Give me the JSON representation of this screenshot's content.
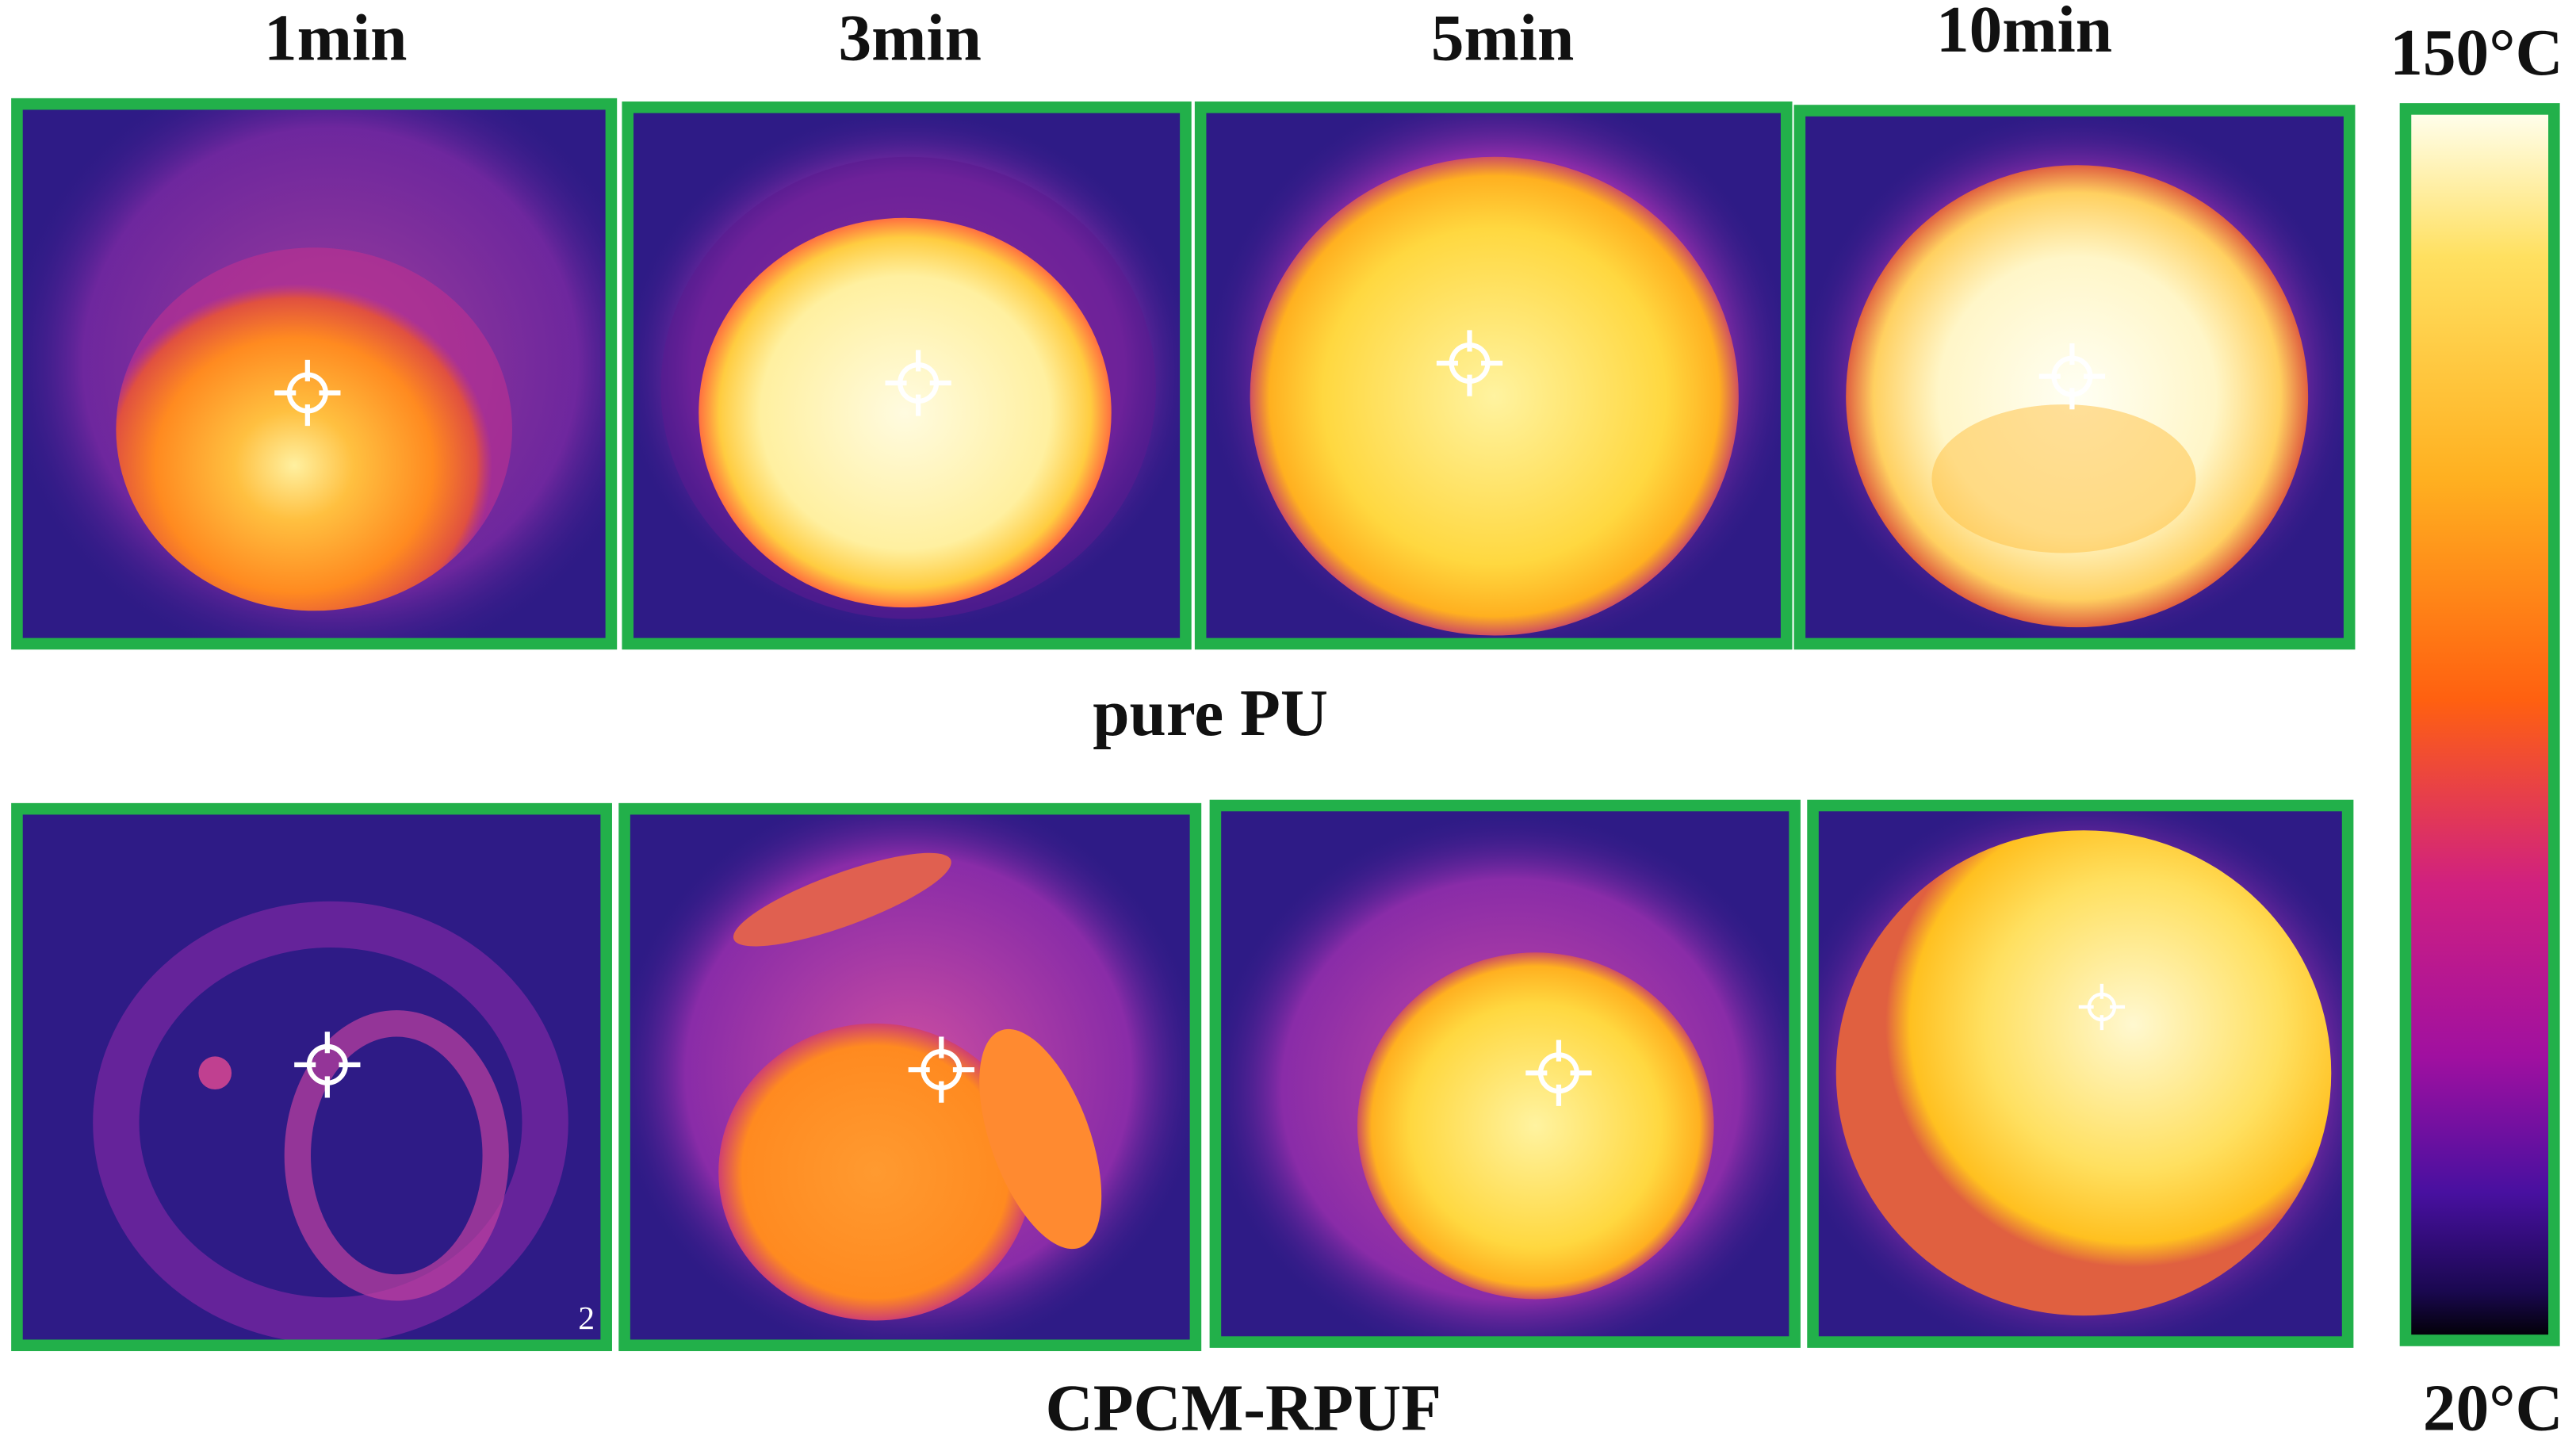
{
  "columns": [
    "1min",
    "3min",
    "5min",
    "10min"
  ],
  "rows": [
    "pure PU",
    "CPCM-RPUF"
  ],
  "colorbar": {
    "max_label": "150°C",
    "min_label": "20°C"
  },
  "corner_mark": "2"
}
